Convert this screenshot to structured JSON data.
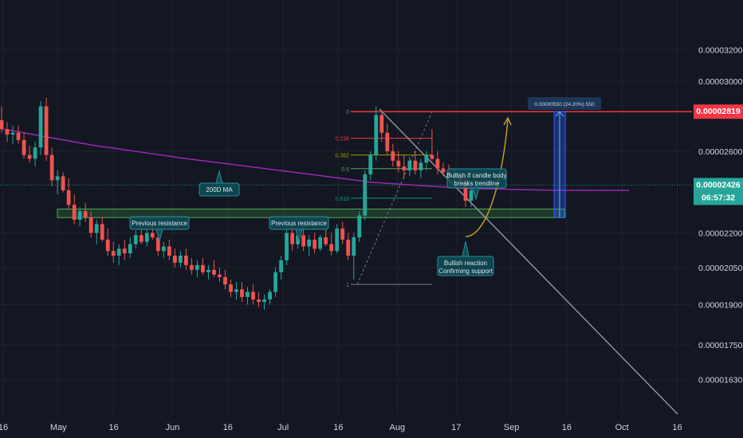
{
  "chart_data": {
    "type": "candlestick",
    "title": "",
    "x_axis": {
      "tick_labels": [
        "16",
        "May",
        "16",
        "Jun",
        "16",
        "Jul",
        "16",
        "Aug",
        "17",
        "Sep",
        "16",
        "Oct",
        "16"
      ]
    },
    "y_axis": {
      "scale": "log",
      "tick_labels": [
        "0.00003200",
        "0.00003000",
        "0.00002600",
        "0.00002200",
        "0.00002050",
        "0.00001900",
        "0.00001750",
        "0.00001630"
      ],
      "ylim": [
        1.555e-05,
        3.38e-05
      ]
    },
    "current_price": {
      "value": "0.00002426",
      "countdown": "06:57:32",
      "color": "#26a69a"
    },
    "target_price": {
      "value": "0.00002819",
      "color": "#f23645"
    },
    "moving_average": {
      "name": "200D MA",
      "color": "#9c27b0",
      "values": [
        2.72e-05,
        2.63e-05,
        2.56e-05,
        2.5e-05,
        2.44e-05,
        2.41e-05,
        2.4e-05,
        2.4e-05
      ]
    },
    "fibonacci": {
      "levels": [
        "0",
        "0.236",
        "0.382",
        "0.5",
        "0.618",
        "1"
      ],
      "prices": [
        2.819e-05,
        2.67e-05,
        2.58e-05,
        2.509e-05,
        2.362e-05,
        1.98e-05
      ],
      "colors": [
        "#787b86",
        "#f23645",
        "#9ba100",
        "#4caf50",
        "#089981",
        "#787b86"
      ]
    },
    "support_zone": {
      "top": 2.31e-05,
      "bottom": 2.27e-05,
      "color": "#4caf50"
    },
    "measurement": {
      "label": "0.00000550 (24.20%) 550",
      "color": "#2962ff"
    },
    "annotations": [
      {
        "id": "ma",
        "text": "200D MA"
      },
      {
        "id": "res1",
        "text": "Previous resistance"
      },
      {
        "id": "res2",
        "text": "Previous resistance"
      },
      {
        "id": "bullish_if",
        "lines": [
          "Bullish if candle body",
          "breaks trendline"
        ]
      },
      {
        "id": "bullish_reaction",
        "lines": [
          "Bullish reaction",
          "Confirming support"
        ]
      }
    ],
    "colors": {
      "up": "#26a69a",
      "down": "#ef5350",
      "background": "#131722",
      "grid": "#1e222d"
    },
    "candles_approx": [
      [
        2.77e-05,
        2.85e-05,
        2.7e-05,
        2.72e-05
      ],
      [
        2.72e-05,
        2.76e-05,
        2.65e-05,
        2.69e-05
      ],
      [
        2.69e-05,
        2.74e-05,
        2.64e-05,
        2.7e-05
      ],
      [
        2.7e-05,
        2.74e-05,
        2.64e-05,
        2.66e-05
      ],
      [
        2.66e-05,
        2.7e-05,
        2.56e-05,
        2.58e-05
      ],
      [
        2.58e-05,
        2.63e-05,
        2.54e-05,
        2.56e-05
      ],
      [
        2.56e-05,
        2.65e-05,
        2.52e-05,
        2.62e-05
      ],
      [
        2.62e-05,
        2.88e-05,
        2.58e-05,
        2.85e-05
      ],
      [
        2.85e-05,
        2.9e-05,
        2.55e-05,
        2.58e-05
      ],
      [
        2.58e-05,
        2.62e-05,
        2.42e-05,
        2.45e-05
      ],
      [
        2.45e-05,
        2.5e-05,
        2.38e-05,
        2.47e-05
      ],
      [
        2.47e-05,
        2.49e-05,
        2.39e-05,
        2.4e-05
      ],
      [
        2.4e-05,
        2.46e-05,
        2.31e-05,
        2.33e-05
      ],
      [
        2.33e-05,
        2.38e-05,
        2.24e-05,
        2.26e-05
      ],
      [
        2.26e-05,
        2.32e-05,
        2.23e-05,
        2.3e-05
      ],
      [
        2.3e-05,
        2.34e-05,
        2.25e-05,
        2.27e-05
      ],
      [
        2.27e-05,
        2.3e-05,
        2.18e-05,
        2.2e-05
      ],
      [
        2.2e-05,
        2.26e-05,
        2.15e-05,
        2.24e-05
      ],
      [
        2.24e-05,
        2.27e-05,
        2.16e-05,
        2.17e-05
      ],
      [
        2.17e-05,
        2.22e-05,
        2.1e-05,
        2.12e-05
      ],
      [
        2.12e-05,
        2.16e-05,
        2.07e-05,
        2.1e-05
      ],
      [
        2.1e-05,
        2.15e-05,
        2.06e-05,
        2.13e-05
      ],
      [
        2.13e-05,
        2.17e-05,
        2.08e-05,
        2.11e-05
      ],
      [
        2.11e-05,
        2.18e-05,
        2.09e-05,
        2.15e-05
      ],
      [
        2.15e-05,
        2.21e-05,
        2.13e-05,
        2.19e-05
      ],
      [
        2.19e-05,
        2.23e-05,
        2.15e-05,
        2.16e-05
      ],
      [
        2.16e-05,
        2.22e-05,
        2.14e-05,
        2.2e-05
      ],
      [
        2.2e-05,
        2.24e-05,
        2.17e-05,
        2.18e-05
      ],
      [
        2.18e-05,
        2.2e-05,
        2.1e-05,
        2.12e-05
      ],
      [
        2.12e-05,
        2.16e-05,
        2.09e-05,
        2.14e-05
      ],
      [
        2.14e-05,
        2.17e-05,
        2.08e-05,
        2.1e-05
      ],
      [
        2.1e-05,
        2.13e-05,
        2.05e-05,
        2.07e-05
      ],
      [
        2.07e-05,
        2.12e-05,
        2.05e-05,
        2.1e-05
      ],
      [
        2.1e-05,
        2.13e-05,
        2.04e-05,
        2.06e-05
      ],
      [
        2.06e-05,
        2.09e-05,
        2.02e-05,
        2.04e-05
      ],
      [
        2.04e-05,
        2.08e-05,
        2.01e-05,
        2.06e-05
      ],
      [
        2.06e-05,
        2.09e-05,
        2.02e-05,
        2.03e-05
      ],
      [
        2.03e-05,
        2.06e-05,
        2e-05,
        2.04e-05
      ],
      [
        2.04e-05,
        2.08e-05,
        2.01e-05,
        2.02e-05
      ],
      [
        2.02e-05,
        2.05e-05,
        1.99e-05,
        2.01e-05
      ],
      [
        2.01e-05,
        2.04e-05,
        1.96e-05,
        1.98e-05
      ],
      [
        1.98e-05,
        2e-05,
        1.93e-05,
        1.95e-05
      ],
      [
        1.95e-05,
        1.99e-05,
        1.92e-05,
        1.96e-05
      ],
      [
        1.96e-05,
        1.99e-05,
        1.91e-05,
        1.93e-05
      ],
      [
        1.93e-05,
        1.97e-05,
        1.9e-05,
        1.95e-05
      ],
      [
        1.95e-05,
        1.98e-05,
        1.9e-05,
        1.92e-05
      ],
      [
        1.92e-05,
        1.95e-05,
        1.89e-05,
        1.91e-05
      ],
      [
        1.91e-05,
        1.94e-05,
        1.88e-05,
        1.92e-05
      ],
      [
        1.92e-05,
        1.96e-05,
        1.9e-05,
        1.95e-05
      ],
      [
        1.95e-05,
        2.05e-05,
        1.93e-05,
        2.03e-05
      ],
      [
        2.03e-05,
        2.1e-05,
        2e-05,
        2.08e-05
      ],
      [
        2.08e-05,
        2.23e-05,
        2.06e-05,
        2.2e-05
      ],
      [
        2.2e-05,
        2.24e-05,
        2.12e-05,
        2.15e-05
      ],
      [
        2.15e-05,
        2.22e-05,
        2.13e-05,
        2.19e-05
      ],
      [
        2.19e-05,
        2.23e-05,
        2.12e-05,
        2.14e-05
      ],
      [
        2.14e-05,
        2.19e-05,
        2.1e-05,
        2.17e-05
      ],
      [
        2.17e-05,
        2.2e-05,
        2.11e-05,
        2.13e-05
      ],
      [
        2.13e-05,
        2.19e-05,
        2.12e-05,
        2.18e-05
      ],
      [
        2.18e-05,
        2.22e-05,
        2.14e-05,
        2.15e-05
      ],
      [
        2.15e-05,
        2.2e-05,
        2.1e-05,
        2.12e-05
      ],
      [
        2.12e-05,
        2.24e-05,
        2.11e-05,
        2.22e-05
      ],
      [
        2.22e-05,
        2.25e-05,
        2.15e-05,
        2.17e-05
      ],
      [
        2.17e-05,
        2.2e-05,
        2.08e-05,
        2.1e-05
      ],
      [
        2.1e-05,
        2.2e-05,
        2e-05,
        2.18e-05
      ],
      [
        2.18e-05,
        2.3e-05,
        2.16e-05,
        2.28e-05
      ],
      [
        2.28e-05,
        2.5e-05,
        2.26e-05,
        2.48e-05
      ],
      [
        2.48e-05,
        2.6e-05,
        2.45e-05,
        2.58e-05
      ],
      [
        2.58e-05,
        2.85e-05,
        2.55e-05,
        2.8e-05
      ],
      [
        2.8e-05,
        2.83e-05,
        2.65e-05,
        2.7e-05
      ],
      [
        2.7e-05,
        2.75e-05,
        2.58e-05,
        2.6e-05
      ],
      [
        2.6e-05,
        2.64e-05,
        2.52e-05,
        2.55e-05
      ],
      [
        2.55e-05,
        2.6e-05,
        2.49e-05,
        2.52e-05
      ],
      [
        2.52e-05,
        2.58e-05,
        2.46e-05,
        2.5e-05
      ],
      [
        2.5e-05,
        2.57e-05,
        2.47e-05,
        2.55e-05
      ],
      [
        2.55e-05,
        2.6e-05,
        2.48e-05,
        2.5e-05
      ],
      [
        2.5e-05,
        2.56e-05,
        2.46e-05,
        2.54e-05
      ],
      [
        2.54e-05,
        2.6e-05,
        2.5e-05,
        2.58e-05
      ],
      [
        2.58e-05,
        2.72e-05,
        2.55e-05,
        2.56e-05
      ],
      [
        2.56e-05,
        2.6e-05,
        2.48e-05,
        2.51e-05
      ],
      [
        2.51e-05,
        2.54e-05,
        2.47e-05,
        2.49e-05
      ],
      [
        2.49e-05,
        2.53e-05,
        2.45e-05,
        2.47e-05
      ],
      [
        2.47e-05,
        2.51e-05,
        2.43e-05,
        2.48e-05
      ],
      [
        2.48e-05,
        2.5e-05,
        2.44e-05,
        2.45e-05
      ],
      [
        2.45e-05,
        2.48e-05,
        2.32e-05,
        2.35e-05
      ],
      [
        2.35e-05,
        2.42e-05,
        2.32e-05,
        2.4e-05
      ],
      [
        2.4e-05,
        2.45e-05,
        2.37e-05,
        2.426e-05
      ]
    ]
  }
}
